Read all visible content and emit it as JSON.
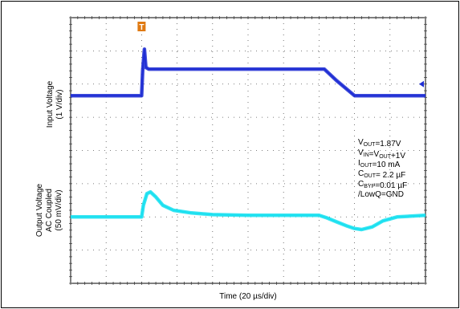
{
  "chart_data": {
    "type": "line",
    "title": "",
    "xlabel": "Time (20 µs/div)",
    "ylabels": [
      "Input Voltage",
      "(1 V/div)",
      "Output Voltage",
      "AC Coupled",
      "(50 mV/div)"
    ],
    "grid": true,
    "x_divisions": 10,
    "y_divisions": 8,
    "xlim": [
      0,
      10
    ],
    "ylim": [
      0,
      8
    ],
    "series": [
      {
        "color": "#1f2ed4",
        "x": [
          0,
          2.0,
          2.03,
          2.08,
          2.12,
          2.2,
          3.0,
          5.0,
          7.0,
          7.15,
          7.5,
          8.0,
          8.3,
          8.5,
          9.0,
          10.0
        ],
        "y": [
          5.65,
          5.65,
          6.4,
          7.05,
          6.5,
          6.45,
          6.45,
          6.45,
          6.45,
          6.45,
          6.1,
          5.65,
          5.65,
          5.65,
          5.65,
          5.65
        ]
      },
      {
        "color": "#19e0f0",
        "x": [
          0,
          2.0,
          2.05,
          2.15,
          2.25,
          2.4,
          2.6,
          2.9,
          3.4,
          4.0,
          5.0,
          6.0,
          7.0,
          7.2,
          7.5,
          7.8,
          8.0,
          8.2,
          8.5,
          8.8,
          9.2,
          10.0
        ],
        "y": [
          2.0,
          2.0,
          2.35,
          2.7,
          2.75,
          2.6,
          2.35,
          2.2,
          2.12,
          2.07,
          2.05,
          2.05,
          2.05,
          1.98,
          1.85,
          1.72,
          1.65,
          1.62,
          1.7,
          1.88,
          2.0,
          2.05
        ]
      }
    ],
    "annotations": [
      {
        "base": "V",
        "sub": "OUT",
        "rest": "=1.87V"
      },
      {
        "base": "V",
        "sub": "IN",
        "rest": "=V",
        "sub2": "OUT",
        "rest2": "+1V"
      },
      {
        "base": "I",
        "sub": "OUT",
        "rest": "=10 mA"
      },
      {
        "base": "C",
        "sub": "OUT",
        "rest": "= 2.2 µF"
      },
      {
        "base": "C",
        "sub": "BYP",
        "rest": "=0.01 µF"
      },
      {
        "base": "/LowQ=GND",
        "sub": "",
        "rest": ""
      }
    ],
    "trigger_marker_label": "T",
    "colors": {
      "input": "#1f2ed4",
      "output": "#19e0f0",
      "trigger": "#e07a12",
      "grid": "#555555"
    }
  }
}
